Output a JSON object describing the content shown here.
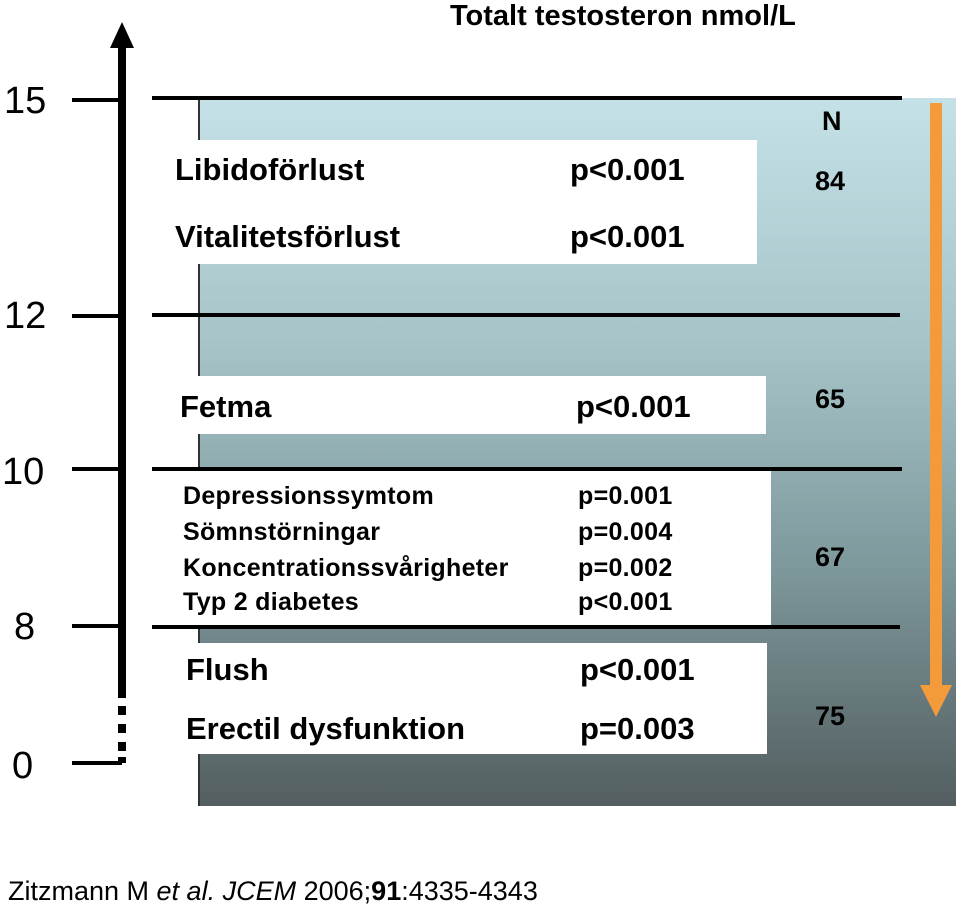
{
  "title": "Totalt testosteron nmol/L",
  "axis": {
    "ticks": [
      "15",
      "12",
      "10",
      "8",
      "0"
    ]
  },
  "n_header": "N",
  "n_values": [
    "84",
    "65",
    "67",
    "75"
  ],
  "groups": [
    {
      "items": [
        {
          "label": "Libidoförlust",
          "p": "p<0.001"
        },
        {
          "label": "Vitalitetsförlust",
          "p": "p<0.001"
        }
      ]
    },
    {
      "items": [
        {
          "label": "Fetma",
          "p": "p<0.001"
        }
      ]
    },
    {
      "items": [
        {
          "label": "Depressionssymtom",
          "p": "p=0.001"
        },
        {
          "label": "Sömnstörningar",
          "p": "p=0.004"
        },
        {
          "label": "Koncentrationssvårigheter",
          "p": "p=0.002"
        },
        {
          "label": "Typ 2 diabetes",
          "p": "p<0.001"
        }
      ]
    },
    {
      "items": [
        {
          "label": "Flush",
          "p": "p<0.001"
        },
        {
          "label": "Erectil dysfunktion",
          "p": "p=0.003"
        }
      ]
    }
  ],
  "citation": {
    "authors": "Zitzmann M ",
    "etal": "et al.",
    "journal": "JCEM",
    "year": " 2006;",
    "volume": "91",
    "pages": ":4335-4343"
  },
  "colors": {
    "panel_top": "#c3e1e6",
    "panel_bottom": "#535e60",
    "arrow": "#f39b3b"
  }
}
